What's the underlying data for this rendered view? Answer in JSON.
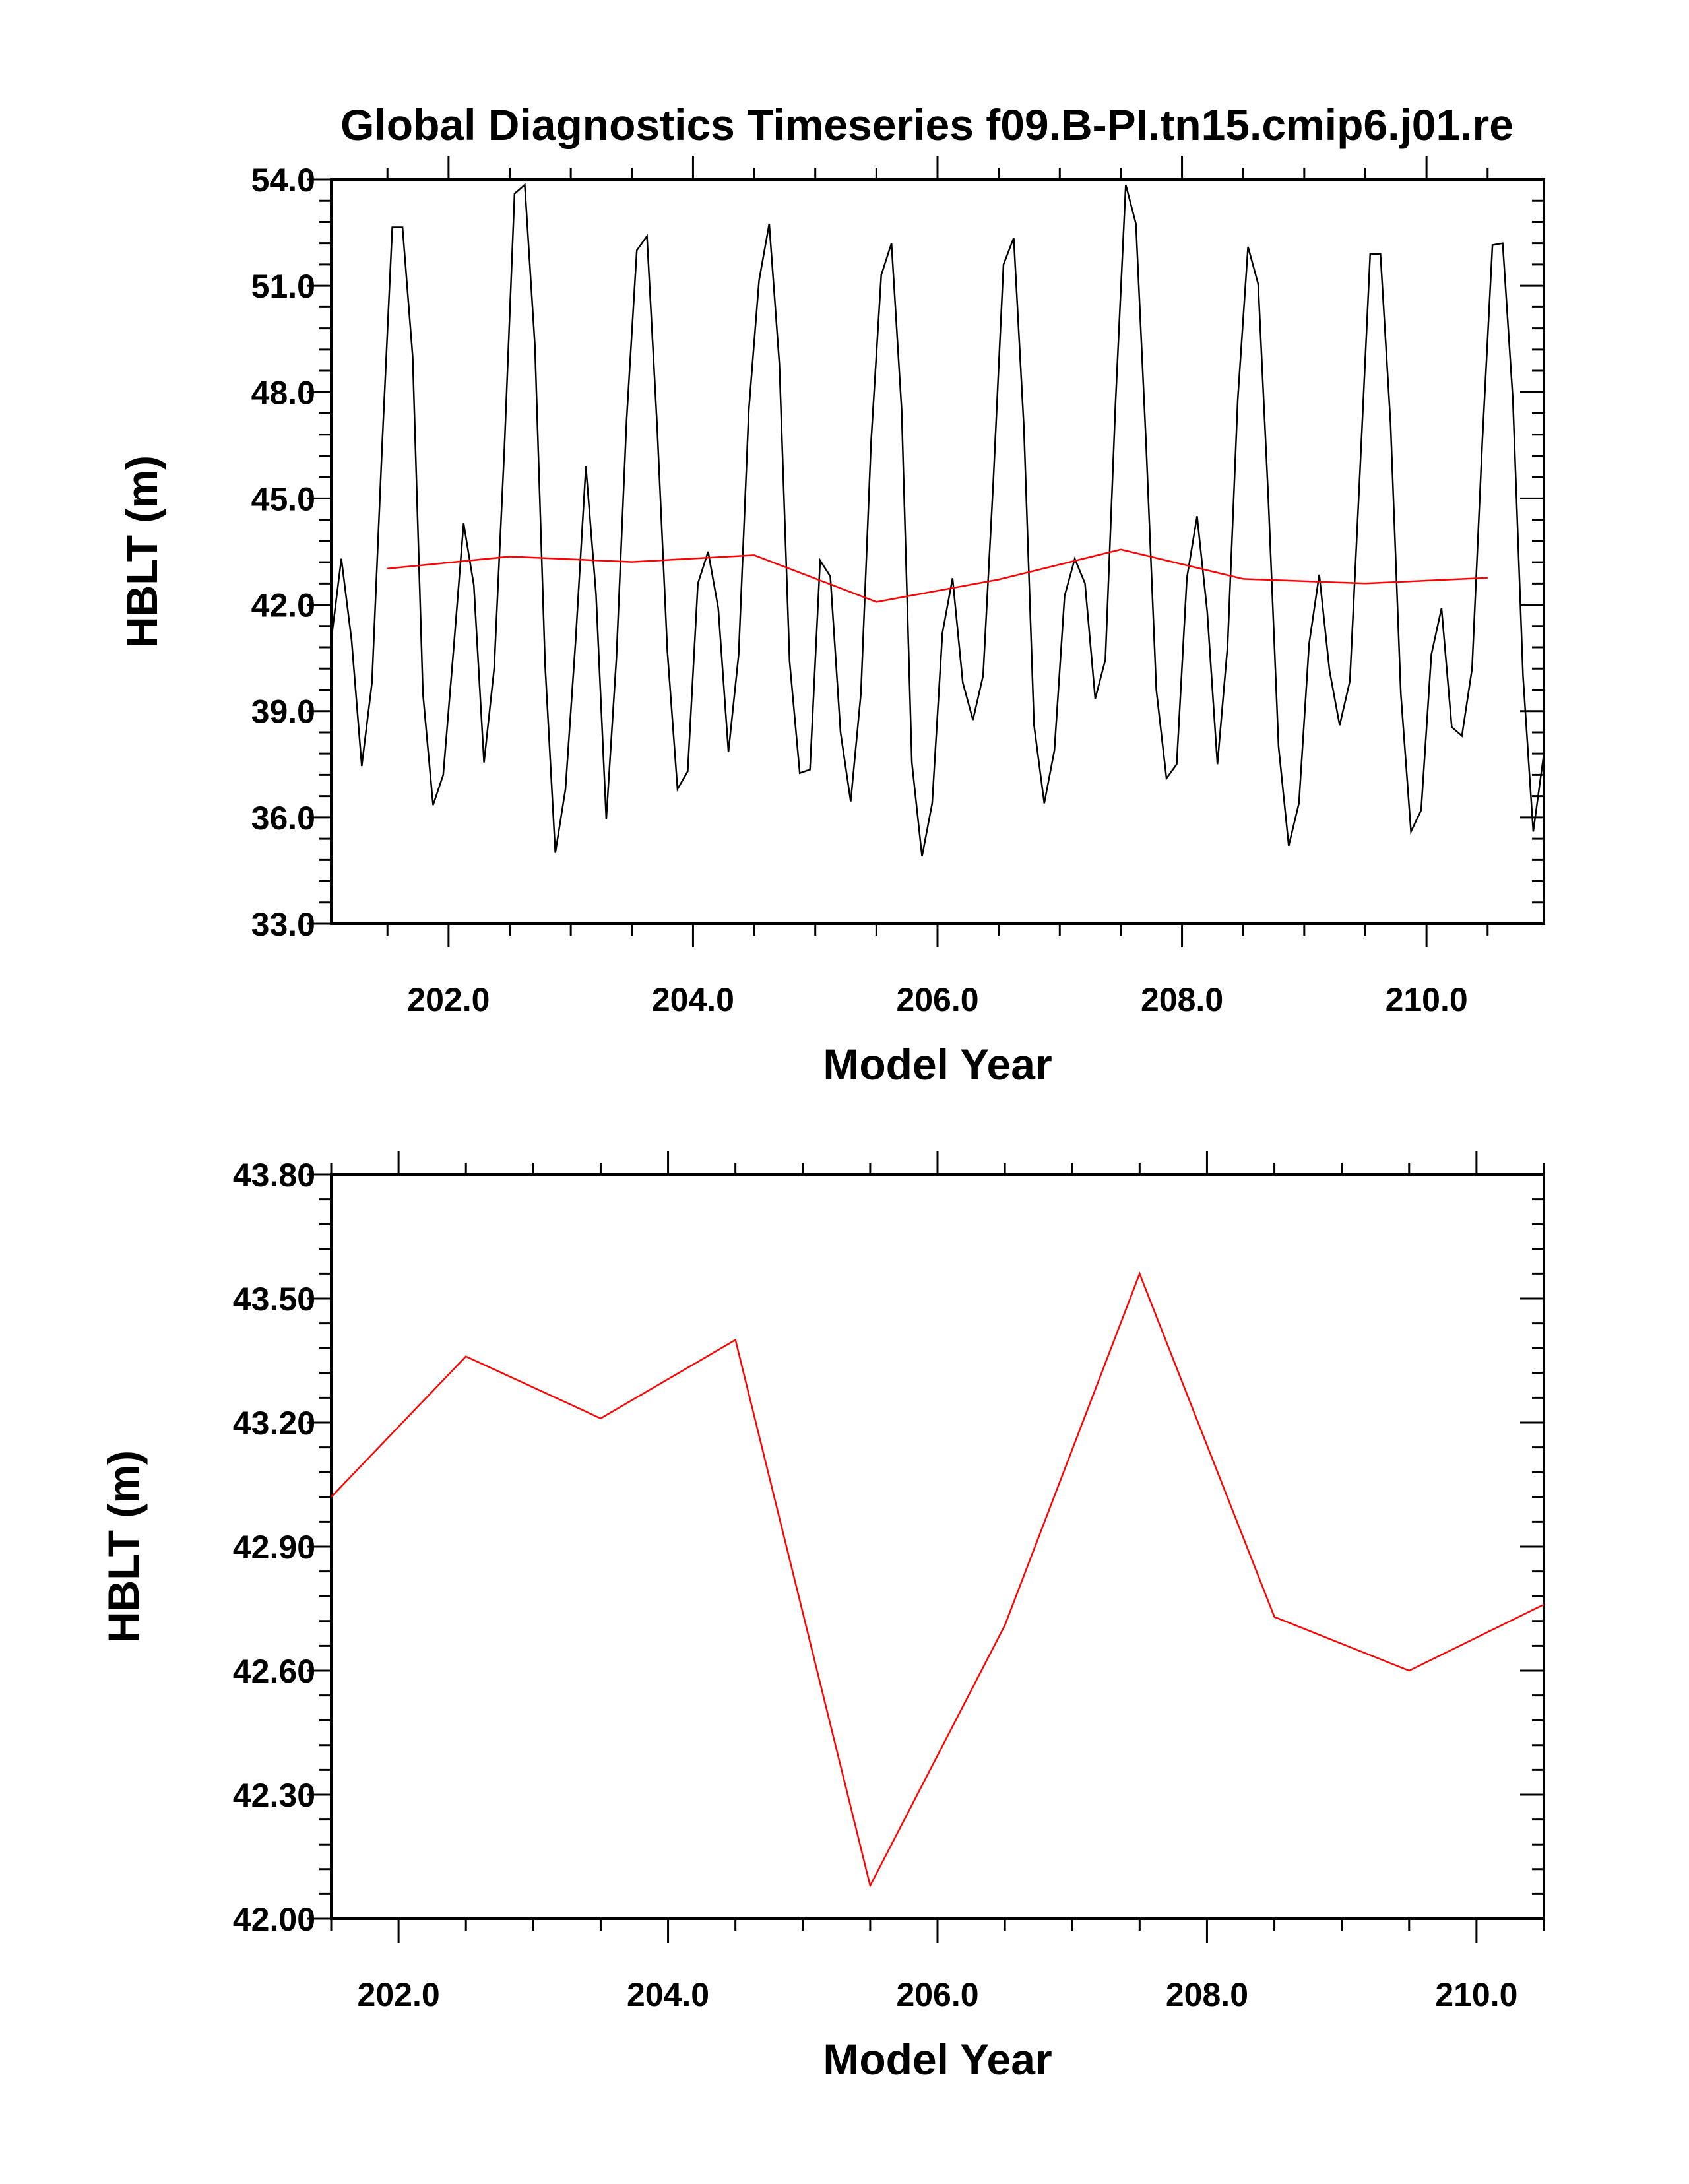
{
  "figure": {
    "title": "Global Diagnostics Timeseries f09.B-PI.tn15.cmip6.j01.re"
  },
  "chart_data": [
    {
      "type": "line",
      "title": "Global Diagnostics Timeseries f09.B-PI.tn15.cmip6.j01.re",
      "xlabel": "Model Year",
      "ylabel": "HBLT (m)",
      "xlim": [
        201.04,
        210.96
      ],
      "ylim": [
        33.0,
        54.0
      ],
      "x_ticks": [
        "202.0",
        "204.0",
        "206.0",
        "208.0",
        "210.0"
      ],
      "y_ticks": [
        "33.0",
        "36.0",
        "39.0",
        "42.0",
        "45.0",
        "48.0",
        "51.0",
        "54.0"
      ],
      "grid": false,
      "series": [
        {
          "color": "#000000",
          "x_start": 201.04,
          "x_step": 0.08333,
          "values": [
            41.0,
            43.3,
            41.0,
            37.45,
            39.8,
            46.5,
            52.65,
            52.65,
            49.0,
            39.5,
            36.35,
            37.2,
            40.7,
            44.3,
            42.55,
            37.55,
            40.2,
            46.4,
            53.6,
            53.85,
            49.3,
            40.3,
            35.0,
            36.8,
            41.0,
            45.9,
            42.3,
            35.95,
            40.5,
            47.2,
            52.0,
            52.4,
            47.0,
            40.7,
            36.8,
            37.3,
            42.6,
            43.5,
            41.9,
            37.85,
            40.6,
            47.5,
            51.15,
            52.75,
            48.8,
            40.4,
            37.25,
            37.35,
            43.25,
            42.8,
            38.4,
            36.45,
            39.5,
            46.6,
            51.3,
            52.2,
            47.5,
            37.55,
            34.9,
            36.4,
            41.2,
            42.75,
            39.8,
            38.75,
            40.0,
            45.5,
            51.6,
            52.35,
            47.0,
            38.6,
            36.4,
            37.9,
            42.25,
            43.3,
            42.6,
            39.35,
            40.45,
            47.7,
            53.85,
            52.75,
            46.5,
            39.6,
            37.1,
            37.5,
            42.75,
            44.5,
            41.8,
            37.5,
            40.85,
            47.8,
            52.1,
            51.05,
            45.0,
            38.0,
            35.2,
            36.4,
            40.9,
            42.85,
            40.15,
            38.6,
            39.85,
            45.8,
            51.9,
            51.9,
            47.1,
            39.5,
            35.6,
            36.2,
            40.6,
            41.9,
            38.55,
            38.3,
            40.2,
            46.6,
            52.15,
            52.2,
            47.8,
            40.0,
            35.6,
            37.7
          ]
        },
        {
          "color": "#ff0000",
          "x": [
            201.5,
            202.5,
            203.5,
            204.5,
            205.5,
            206.5,
            207.5,
            208.5,
            209.5,
            210.5
          ],
          "values": [
            43.02,
            43.36,
            43.21,
            43.4,
            42.08,
            42.71,
            43.56,
            42.73,
            42.6,
            42.76
          ]
        }
      ]
    },
    {
      "type": "line",
      "xlabel": "Model Year",
      "ylabel": "HBLT (m)",
      "xlim": [
        201.5,
        210.5
      ],
      "ylim": [
        42.0,
        43.8
      ],
      "x_ticks": [
        "202.0",
        "204.0",
        "206.0",
        "208.0",
        "210.0"
      ],
      "y_ticks": [
        "42.00",
        "42.30",
        "42.60",
        "42.90",
        "43.20",
        "43.50",
        "43.80"
      ],
      "grid": false,
      "series": [
        {
          "color": "#ff0000",
          "x": [
            201.5,
            202.5,
            203.5,
            204.5,
            205.5,
            206.5,
            207.5,
            208.5,
            209.5,
            210.5
          ],
          "values": [
            43.02,
            43.36,
            43.21,
            43.4,
            42.08,
            42.71,
            43.56,
            42.73,
            42.6,
            42.76
          ]
        }
      ]
    }
  ]
}
